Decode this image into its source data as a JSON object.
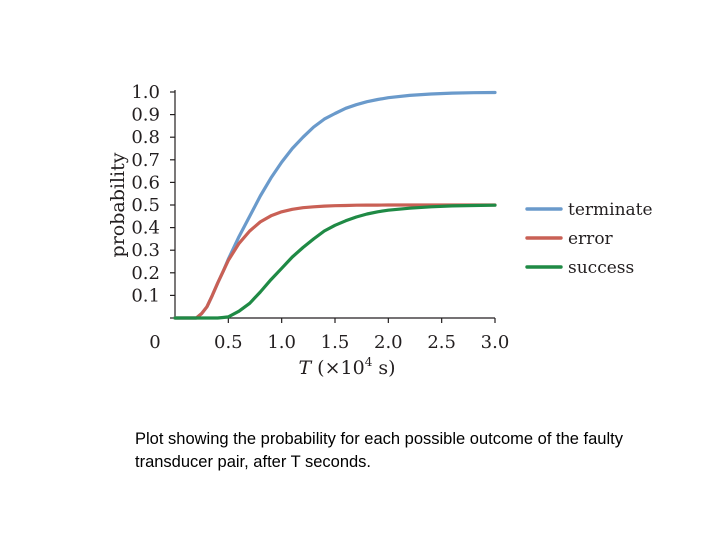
{
  "chart_data": {
    "type": "line",
    "title": "",
    "xlabel_var": "T",
    "xlabel_unit": " (×10",
    "xlabel_sup": "4",
    "xlabel_end": " s)",
    "ylabel": "probability",
    "xlim": [
      0,
      3.0
    ],
    "ylim": [
      0,
      1.0
    ],
    "x_ticks": [
      "0",
      "0.5",
      "1.0",
      "1.5",
      "2.0",
      "2.5",
      "3.0"
    ],
    "x_tick_values": [
      0,
      0.5,
      1.0,
      1.5,
      2.0,
      2.5,
      3.0
    ],
    "y_ticks": [
      "0.1",
      "0.2",
      "0.3",
      "0.4",
      "0.5",
      "0.6",
      "0.7",
      "0.8",
      "0.9",
      "1.0"
    ],
    "y_tick_values": [
      0.1,
      0.2,
      0.3,
      0.4,
      0.5,
      0.6,
      0.7,
      0.8,
      0.9,
      1.0
    ],
    "grid": false,
    "legend_position": "right",
    "x": [
      0.2,
      0.25,
      0.3,
      0.35,
      0.4,
      0.45,
      0.5,
      0.6,
      0.7,
      0.8,
      0.9,
      1.0,
      1.1,
      1.2,
      1.3,
      1.4,
      1.5,
      1.6,
      1.7,
      1.8,
      1.9,
      2.0,
      2.2,
      2.4,
      2.6,
      2.8,
      3.0
    ],
    "series": [
      {
        "name": "terminate",
        "color": "#6a9acb",
        "values": [
          0.0,
          0.02,
          0.05,
          0.1,
          0.155,
          0.205,
          0.26,
          0.36,
          0.45,
          0.54,
          0.62,
          0.69,
          0.75,
          0.8,
          0.845,
          0.88,
          0.905,
          0.928,
          0.944,
          0.957,
          0.967,
          0.975,
          0.985,
          0.991,
          0.995,
          0.997,
          0.998
        ]
      },
      {
        "name": "error",
        "color": "#c96055",
        "values": [
          0.0,
          0.02,
          0.05,
          0.1,
          0.155,
          0.205,
          0.255,
          0.33,
          0.385,
          0.425,
          0.452,
          0.47,
          0.481,
          0.488,
          0.492,
          0.495,
          0.497,
          0.498,
          0.499,
          0.4995,
          0.4997,
          0.4998,
          0.4999,
          0.5,
          0.5,
          0.5,
          0.5
        ]
      },
      {
        "name": "success",
        "color": "#1f8a45",
        "values": [
          0.0,
          0.0,
          0.0,
          0.0,
          0.0,
          0.002,
          0.005,
          0.03,
          0.065,
          0.115,
          0.17,
          0.22,
          0.27,
          0.312,
          0.35,
          0.385,
          0.41,
          0.43,
          0.447,
          0.46,
          0.47,
          0.477,
          0.486,
          0.492,
          0.496,
          0.498,
          0.499
        ]
      }
    ]
  },
  "caption": "Plot showing the probability for each possible outcome of the faulty transducer pair, after T seconds."
}
